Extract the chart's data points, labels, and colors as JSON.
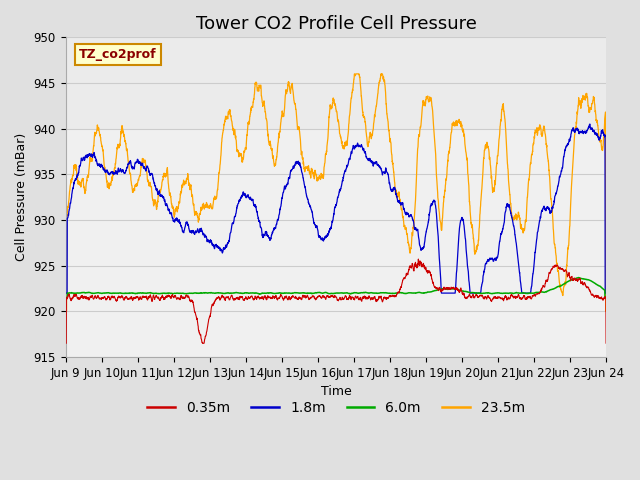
{
  "title": "Tower CO2 Profile Cell Pressure",
  "xlabel": "Time",
  "ylabel": "Cell Pressure (mBar)",
  "ylim": [
    915,
    950
  ],
  "yticks": [
    915,
    920,
    925,
    930,
    935,
    940,
    945,
    950
  ],
  "legend_colors": [
    "#cc0000",
    "#0000cc",
    "#00aa00",
    "#ffa500"
  ],
  "annotation_text": "TZ_co2prof",
  "annotation_bg": "#ffffcc",
  "annotation_border": "#cc8800",
  "xticklabels": [
    "Jun 9",
    "Jun 10",
    "Jun 11",
    "Jun 12",
    "Jun 13",
    "Jun 14",
    "Jun 15",
    "Jun 16",
    "Jun 17",
    "Jun 18",
    "Jun 19",
    "Jun 20",
    "Jun 21",
    "Jun 22",
    "Jun 23",
    "Jun 24"
  ],
  "grid_color": "#cccccc",
  "title_fontsize": 13,
  "label_fontsize": 9,
  "tick_fontsize": 8.5,
  "legend_fontsize": 10,
  "fig_bg": "#e0e0e0",
  "plot_bg": "#f0f0f0"
}
